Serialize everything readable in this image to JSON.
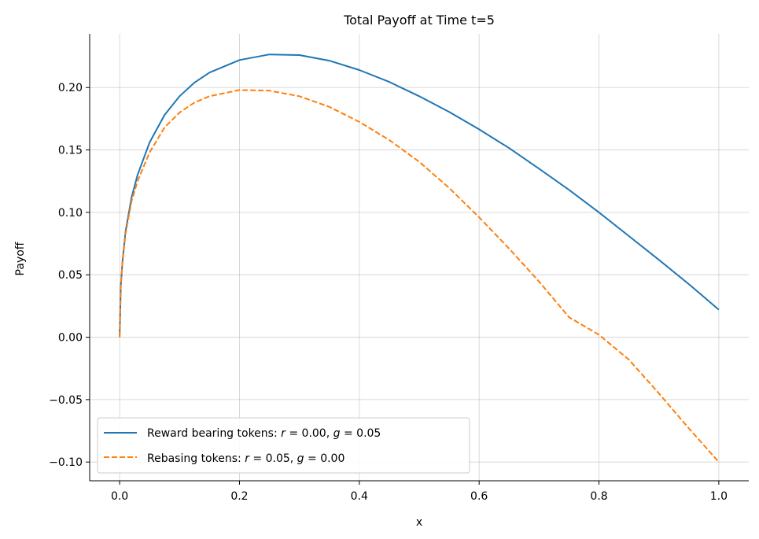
{
  "chart_data": {
    "type": "line",
    "title": "Total Payoff at Time t=5",
    "xlabel": "x",
    "ylabel": "Payoff",
    "xlim": [
      -0.05,
      1.05
    ],
    "ylim": [
      -0.115,
      0.243
    ],
    "grid": true,
    "legend_position": "lower-left",
    "x_ticks": [
      0.0,
      0.2,
      0.4,
      0.6,
      0.8,
      1.0
    ],
    "x_tick_labels": [
      "0.0",
      "0.2",
      "0.4",
      "0.6",
      "0.8",
      "1.0"
    ],
    "y_ticks": [
      -0.1,
      -0.05,
      0.0,
      0.05,
      0.1,
      0.15,
      0.2
    ],
    "y_tick_labels": [
      "−0.10",
      "−0.05",
      "0.00",
      "0.05",
      "0.10",
      "0.15",
      "0.20"
    ],
    "series": [
      {
        "name": "Reward bearing tokens: r = 0.00, g = 0.05",
        "legend_prefix": "Reward bearing tokens: ",
        "legend_r": "0.00",
        "legend_g": "0.05",
        "color": "#1f77b4",
        "style": "solid",
        "x": [
          0.0,
          0.002,
          0.005,
          0.01,
          0.02,
          0.03,
          0.05,
          0.075,
          0.1,
          0.125,
          0.15,
          0.2,
          0.25,
          0.3,
          0.35,
          0.4,
          0.45,
          0.5,
          0.55,
          0.6,
          0.65,
          0.7,
          0.75,
          0.8,
          0.85,
          0.9,
          0.95,
          1.0
        ],
        "y": [
          0.0,
          0.041,
          0.062,
          0.085,
          0.112,
          0.13,
          0.156,
          0.178,
          0.193,
          0.204,
          0.212,
          0.222,
          0.2265,
          0.226,
          0.2215,
          0.214,
          0.2045,
          0.193,
          0.1805,
          0.1665,
          0.1515,
          0.135,
          0.118,
          0.1,
          0.081,
          0.062,
          0.0425,
          0.022
        ]
      },
      {
        "name": "Rebasing tokens: r = 0.05, g = 0.00",
        "legend_prefix": "Rebasing tokens: ",
        "legend_r": "0.05",
        "legend_g": "0.00",
        "color": "#ff7f0e",
        "style": "dashed",
        "x": [
          0.0,
          0.002,
          0.005,
          0.01,
          0.02,
          0.03,
          0.05,
          0.075,
          0.1,
          0.125,
          0.15,
          0.2,
          0.25,
          0.3,
          0.35,
          0.4,
          0.45,
          0.5,
          0.55,
          0.6,
          0.65,
          0.7,
          0.75,
          0.8,
          0.85,
          0.9,
          0.95,
          1.0
        ],
        "y": [
          0.0,
          0.041,
          0.061,
          0.083,
          0.109,
          0.125,
          0.148,
          0.168,
          0.18,
          0.188,
          0.193,
          0.198,
          0.1975,
          0.193,
          0.1845,
          0.1725,
          0.158,
          0.1405,
          0.1195,
          0.096,
          0.071,
          0.0445,
          0.016,
          0.002,
          -0.018,
          -0.045,
          -0.073,
          -0.1
        ]
      }
    ]
  }
}
